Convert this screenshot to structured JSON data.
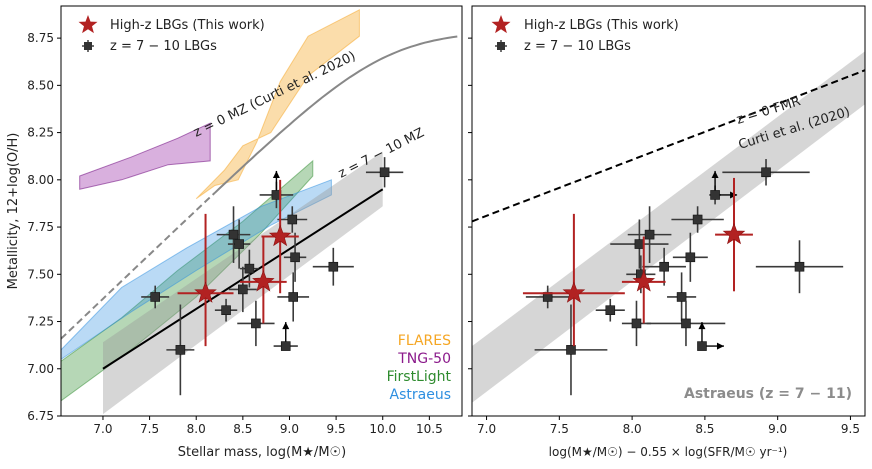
{
  "chart_data": [
    {
      "type": "scatter",
      "panel": "left",
      "xlabel": "Stellar mass, log(M★/M☉)",
      "ylabel": "Metallicity, 12+log(O/H)",
      "xlim": [
        6.55,
        10.85
      ],
      "ylim": [
        6.75,
        8.92
      ],
      "xticks": [
        "7.0",
        "7.5",
        "8.0",
        "8.5",
        "9.0",
        "9.5",
        "10.0",
        "10.5"
      ],
      "yticks": [
        "6.75",
        "7.00",
        "7.25",
        "7.50",
        "7.75",
        "8.00",
        "8.25",
        "8.50",
        "8.75"
      ],
      "legend": [
        {
          "label": "High-z LBGs (This work)",
          "marker": "star",
          "color": "#b22222"
        },
        {
          "label": "z = 7 − 10 LBGs",
          "marker": "square",
          "color": "#333333"
        }
      ],
      "annotations": {
        "mz0": "z = 0 MZ (Curti et al. 2020)",
        "mz7": "z = 7 − 10 MZ"
      },
      "sim_labels": [
        {
          "label": "FLARES",
          "color": "#f5a623"
        },
        {
          "label": "TNG-50",
          "color": "#8b1a8b"
        },
        {
          "label": "FirstLight",
          "color": "#2e8b2e"
        },
        {
          "label": "Astraeus",
          "color": "#2e8fe0"
        }
      ],
      "stars": [
        {
          "x": 8.1,
          "y": 7.4,
          "xerr": 0.3,
          "yerr": [
            0.28,
            0.42
          ]
        },
        {
          "x": 8.72,
          "y": 7.46,
          "xerr": 0.25,
          "yerr": [
            0.22,
            0.24
          ]
        },
        {
          "x": 8.9,
          "y": 7.7,
          "xerr": 0.2,
          "yerr": [
            0.3,
            0.3
          ]
        }
      ],
      "lbgs": [
        {
          "x": 7.56,
          "y": 7.38,
          "xerr": 0.15,
          "yerr": 0.06
        },
        {
          "x": 7.83,
          "y": 7.1,
          "xerr": 0.15,
          "yerr": 0.24
        },
        {
          "x": 8.32,
          "y": 7.31,
          "xerr": 0.12,
          "yerr": 0.06
        },
        {
          "x": 8.4,
          "y": 7.71,
          "xerr": 0.18,
          "yerr": 0.15
        },
        {
          "x": 8.46,
          "y": 7.66,
          "xerr": 0.12,
          "yerr": 0.13
        },
        {
          "x": 8.5,
          "y": 7.42,
          "xerr": 0.15,
          "yerr": 0.12
        },
        {
          "x": 8.57,
          "y": 7.53,
          "xerr": 0.1,
          "yerr": 0.1
        },
        {
          "x": 8.64,
          "y": 7.24,
          "xerr": 0.2,
          "yerr": 0.12
        },
        {
          "x": 8.86,
          "y": 7.92,
          "xerr": 0.18,
          "yerr": 0.07,
          "upper": true
        },
        {
          "x": 8.96,
          "y": 7.12,
          "xerr": 0.13,
          "yerr": 0,
          "upper": true
        },
        {
          "x": 9.03,
          "y": 7.79,
          "xerr": 0.16,
          "yerr": 0.07
        },
        {
          "x": 9.06,
          "y": 7.59,
          "xerr": 0.12,
          "yerr": 0.13
        },
        {
          "x": 9.04,
          "y": 7.38,
          "xerr": 0.17,
          "yerr": 0.13
        },
        {
          "x": 9.47,
          "y": 7.54,
          "xerr": 0.22,
          "yerr": 0.1
        },
        {
          "x": 10.02,
          "y": 8.04,
          "xerr": 0.2,
          "yerr": 0.08
        }
      ]
    },
    {
      "type": "scatter",
      "panel": "right",
      "xlabel": "log(M★/M☉) − 0.55 × log(SFR/M☉ yr⁻¹)",
      "ylabel": "",
      "xlim": [
        6.9,
        9.6
      ],
      "ylim": [
        6.75,
        8.92
      ],
      "xticks": [
        "7.0",
        "7.5",
        "8.0",
        "8.5",
        "9.0",
        "9.5"
      ],
      "legend": [
        {
          "label": "High-z LBGs (This work)",
          "marker": "star",
          "color": "#b22222"
        },
        {
          "label": "z = 7 − 10 LBGs",
          "marker": "square",
          "color": "#333333"
        }
      ],
      "annotations": {
        "fmr1": "z = 0 FMR",
        "fmr2": "Curti et al. (2020)",
        "astraeus": "Astraeus (z = 7 − 11)"
      },
      "stars": [
        {
          "x": 7.6,
          "y": 7.4,
          "xerr": 0.35,
          "yerr": [
            0.28,
            0.42
          ]
        },
        {
          "x": 8.08,
          "y": 7.46,
          "xerr": 0.15,
          "yerr": [
            0.22,
            0.24
          ]
        },
        {
          "x": 8.7,
          "y": 7.71,
          "xerr": 0.13,
          "yerr": [
            0.3,
            0.3
          ]
        }
      ],
      "lbgs": [
        {
          "x": 7.42,
          "y": 7.38,
          "xerr": 0.15,
          "yerr": 0.06
        },
        {
          "x": 7.58,
          "y": 7.1,
          "xerr": 0.25,
          "yerr": 0.24
        },
        {
          "x": 7.85,
          "y": 7.31,
          "xerr": 0.1,
          "yerr": 0.06
        },
        {
          "x": 8.03,
          "y": 7.24,
          "xerr": 0.1,
          "yerr": 0.12
        },
        {
          "x": 8.05,
          "y": 7.66,
          "xerr": 0.2,
          "yerr": 0.13
        },
        {
          "x": 8.12,
          "y": 7.71,
          "xerr": 0.15,
          "yerr": 0.15
        },
        {
          "x": 8.06,
          "y": 7.5,
          "xerr": 0.1,
          "yerr": 0.1
        },
        {
          "x": 8.22,
          "y": 7.54,
          "xerr": 0.15,
          "yerr": 0.1
        },
        {
          "x": 8.34,
          "y": 7.38,
          "xerr": 0.1,
          "yerr": 0.13
        },
        {
          "x": 8.4,
          "y": 7.59,
          "xerr": 0.12,
          "yerr": 0.13
        },
        {
          "x": 8.45,
          "y": 7.79,
          "xerr": 0.18,
          "yerr": 0.07
        },
        {
          "x": 8.37,
          "y": 7.24,
          "xerr": 0.27,
          "yerr": 0.12
        },
        {
          "x": 8.57,
          "y": 7.92,
          "xerr": 0.04,
          "yerr": 0.05,
          "upper": true,
          "lower_x": true
        },
        {
          "x": 8.92,
          "y": 8.04,
          "xerr": 0.3,
          "yerr": 0.07
        },
        {
          "x": 9.15,
          "y": 7.54,
          "xerr": 0.3,
          "yerr": 0.14
        },
        {
          "x": 8.48,
          "y": 7.12,
          "xerr": 0,
          "yerr": 0,
          "upper": true,
          "lower_x": true
        }
      ]
    }
  ]
}
